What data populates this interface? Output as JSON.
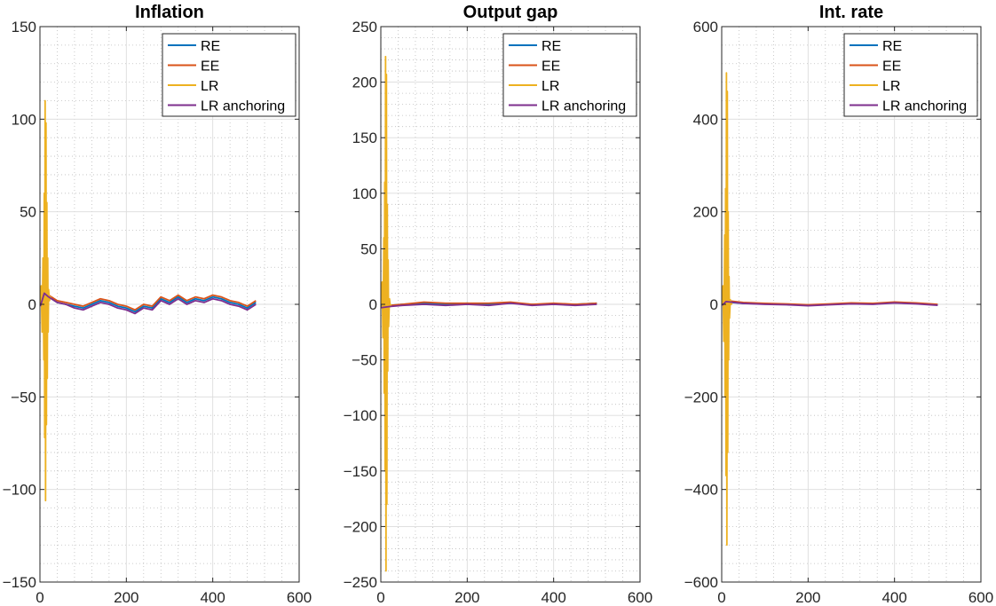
{
  "chart_data": [
    {
      "type": "line",
      "title": "Inflation",
      "xlim": [
        0,
        600
      ],
      "ylim": [
        -150,
        150
      ],
      "xticks": [
        0,
        200,
        400,
        600
      ],
      "yticks": [
        -150,
        -100,
        -50,
        0,
        50,
        100,
        150
      ],
      "grid": "major solid, minor dotted",
      "legend_placement": "top-right",
      "series": [
        {
          "name": "RE",
          "color": "#0072BD",
          "x": [
            1,
            10,
            20,
            40,
            60,
            80,
            100,
            120,
            140,
            160,
            180,
            200,
            220,
            240,
            260,
            280,
            300,
            320,
            340,
            360,
            380,
            400,
            420,
            440,
            460,
            480,
            500
          ],
          "y": [
            0,
            6,
            4,
            1,
            0,
            -1,
            -2,
            0,
            2,
            1,
            -1,
            -2,
            -4,
            -1,
            -2,
            3,
            1,
            4,
            1,
            3,
            2,
            4,
            3,
            1,
            0,
            -2,
            1
          ]
        },
        {
          "name": "EE",
          "color": "#D95319",
          "x": [
            1,
            10,
            20,
            40,
            60,
            80,
            100,
            120,
            140,
            160,
            180,
            200,
            220,
            240,
            260,
            280,
            300,
            320,
            340,
            360,
            380,
            400,
            420,
            440,
            460,
            480,
            500
          ],
          "y": [
            0,
            7,
            5,
            2,
            1,
            0,
            -1,
            1,
            3,
            2,
            0,
            -1,
            -3,
            0,
            -1,
            4,
            2,
            5,
            2,
            4,
            3,
            5,
            4,
            2,
            1,
            -1,
            2
          ]
        },
        {
          "name": "LR",
          "color": "#EDB120",
          "x": [
            1,
            3,
            5,
            7,
            9,
            10,
            11,
            12,
            13,
            14,
            15,
            16,
            17,
            18,
            19,
            20,
            22,
            24,
            26
          ],
          "y": [
            0,
            10,
            -15,
            25,
            -30,
            60,
            -72,
            110,
            -106,
            98,
            -65,
            55,
            -40,
            25,
            -15,
            8,
            2,
            4,
            3
          ]
        },
        {
          "name": "LR anchoring",
          "color": "#7E2F8E",
          "x": [
            1,
            10,
            20,
            40,
            60,
            80,
            100,
            120,
            140,
            160,
            180,
            200,
            220,
            240,
            260,
            280,
            300,
            320,
            340,
            360,
            380,
            400,
            420,
            440,
            460,
            480,
            500
          ],
          "y": [
            -1,
            6,
            4,
            1,
            0,
            -2,
            -3,
            -1,
            1,
            0,
            -2,
            -3,
            -5,
            -2,
            -3,
            2,
            0,
            3,
            0,
            2,
            1,
            3,
            2,
            0,
            -1,
            -3,
            0
          ]
        }
      ]
    },
    {
      "type": "line",
      "title": "Output gap",
      "xlim": [
        0,
        600
      ],
      "ylim": [
        -250,
        250
      ],
      "xticks": [
        0,
        200,
        400,
        600
      ],
      "yticks": [
        -250,
        -200,
        -150,
        -100,
        -50,
        0,
        50,
        100,
        150,
        200,
        250
      ],
      "grid": "major solid, minor dotted",
      "legend_placement": "top-right",
      "series": [
        {
          "name": "RE",
          "color": "#0072BD",
          "x": [
            1,
            20,
            50,
            100,
            150,
            200,
            250,
            300,
            350,
            400,
            450,
            500
          ],
          "y": [
            -1,
            -1,
            0,
            1,
            0,
            1,
            0,
            1,
            0,
            0,
            0,
            1
          ]
        },
        {
          "name": "EE",
          "color": "#D95319",
          "x": [
            1,
            20,
            50,
            100,
            150,
            200,
            250,
            300,
            350,
            400,
            450,
            500
          ],
          "y": [
            -2,
            -1,
            0,
            2,
            1,
            1,
            1,
            2,
            0,
            1,
            0,
            1
          ]
        },
        {
          "name": "LR",
          "color": "#EDB120",
          "x": [
            1,
            3,
            5,
            7,
            8,
            9,
            10,
            11,
            12,
            13,
            14,
            15,
            16,
            17,
            18,
            20,
            22,
            24
          ],
          "y": [
            0,
            20,
            -30,
            60,
            -80,
            110,
            -150,
            223,
            -240,
            207,
            -180,
            90,
            -60,
            40,
            -20,
            5,
            -2,
            0
          ]
        },
        {
          "name": "LR anchoring",
          "color": "#7E2F8E",
          "x": [
            1,
            20,
            50,
            100,
            150,
            200,
            250,
            300,
            350,
            400,
            450,
            500
          ],
          "y": [
            -3,
            -2,
            -1,
            0,
            -1,
            0,
            -1,
            1,
            -1,
            0,
            -1,
            0
          ]
        }
      ]
    },
    {
      "type": "line",
      "title": "Int. rate",
      "xlim": [
        0,
        600
      ],
      "ylim": [
        -600,
        600
      ],
      "xticks": [
        0,
        200,
        400,
        600
      ],
      "yticks": [
        -600,
        -400,
        -200,
        0,
        200,
        400,
        600
      ],
      "grid": "major solid, minor dotted",
      "legend_placement": "top-right",
      "series": [
        {
          "name": "RE",
          "color": "#0072BD",
          "x": [
            1,
            10,
            50,
            100,
            150,
            200,
            250,
            300,
            350,
            400,
            450,
            500
          ],
          "y": [
            0,
            5,
            2,
            1,
            0,
            -2,
            0,
            2,
            1,
            4,
            2,
            -1
          ]
        },
        {
          "name": "EE",
          "color": "#D95319",
          "x": [
            1,
            10,
            50,
            100,
            150,
            200,
            250,
            300,
            350,
            400,
            450,
            500
          ],
          "y": [
            0,
            8,
            4,
            2,
            1,
            -1,
            1,
            3,
            2,
            5,
            3,
            0
          ]
        },
        {
          "name": "LR",
          "color": "#EDB120",
          "x": [
            1,
            3,
            5,
            7,
            8,
            9,
            10,
            11,
            12,
            13,
            14,
            15,
            16,
            17,
            18,
            20,
            22,
            24
          ],
          "y": [
            0,
            40,
            -80,
            150,
            -200,
            250,
            -370,
            500,
            -520,
            460,
            -320,
            200,
            -120,
            60,
            -30,
            10,
            0,
            3
          ]
        },
        {
          "name": "LR anchoring",
          "color": "#7E2F8E",
          "x": [
            1,
            10,
            50,
            100,
            150,
            200,
            250,
            300,
            350,
            400,
            450,
            500
          ],
          "y": [
            -2,
            6,
            2,
            0,
            -1,
            -3,
            -1,
            1,
            0,
            3,
            1,
            -2
          ]
        }
      ]
    }
  ]
}
